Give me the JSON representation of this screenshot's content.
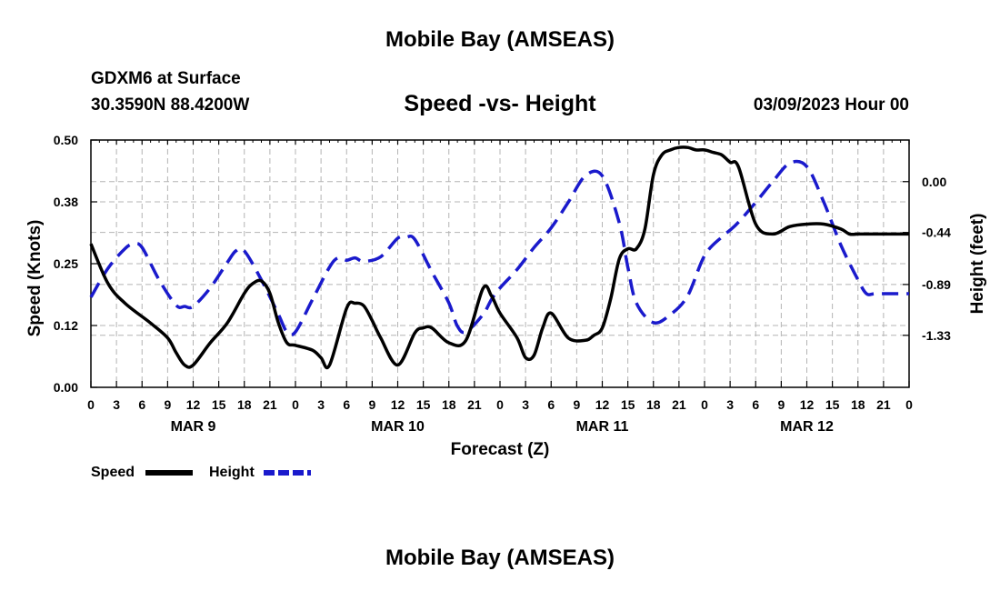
{
  "header": {
    "title": "Mobile Bay (AMSEAS)",
    "station": "GDXM6 at Surface",
    "coords": "30.3590N  88.4200W",
    "subtitle": "Speed -vs- Height",
    "datetime": "03/09/2023 Hour 00"
  },
  "footer": {
    "title": "Mobile Bay (AMSEAS)"
  },
  "chart_data": {
    "type": "line",
    "title": "Speed -vs- Height",
    "xlabel": "Forecast (Z)",
    "ylabel": "Speed (Knots)",
    "y2label": "Height (feet)",
    "x_tick_labels": [
      "0",
      "3",
      "6",
      "9",
      "12",
      "15",
      "18",
      "21",
      "0",
      "3",
      "6",
      "9",
      "12",
      "15",
      "18",
      "21",
      "0",
      "3",
      "6",
      "9",
      "12",
      "15",
      "18",
      "21",
      "0",
      "3",
      "6",
      "9",
      "12",
      "15",
      "18",
      "21",
      "0"
    ],
    "date_labels": [
      "MAR 9",
      "MAR 10",
      "MAR 11",
      "MAR 12"
    ],
    "x_unit": "forecast hour",
    "xlim": [
      0,
      96
    ],
    "ylim": [
      0,
      0.5
    ],
    "y_ticks": [
      "0.00",
      "0.12",
      "0.25",
      "0.38",
      "0.50"
    ],
    "y_tick_values": [
      0,
      0.125,
      0.25,
      0.375,
      0.5
    ],
    "y2lim": [
      -1.78,
      0.36
    ],
    "y2_ticks": [
      "0.00",
      "-0.44",
      "-0.89",
      "-1.33"
    ],
    "y2_tick_values": [
      0,
      -0.44,
      -0.89,
      -1.33
    ],
    "grid": true,
    "legend": [
      {
        "name": "Speed",
        "color": "#000000",
        "style": "solid"
      },
      {
        "name": "Height",
        "color": "#1a1acc",
        "style": "dashed"
      }
    ],
    "legend_position": "bottom-left",
    "series": [
      {
        "name": "Speed",
        "axis": "left",
        "color": "#000000",
        "style": "solid",
        "x": [
          0,
          2,
          4,
          7,
          9,
          10,
          11,
          12,
          14,
          16,
          18,
          19,
          20,
          21,
          22,
          23,
          24,
          26,
          27,
          28,
          30,
          31,
          32,
          33,
          34,
          36,
          38,
          39,
          40,
          42,
          44,
          46,
          47,
          48,
          50,
          51,
          52,
          53,
          54,
          56,
          58,
          59,
          60,
          61,
          62,
          63,
          64,
          65,
          66,
          67,
          68,
          69,
          70,
          71,
          72,
          73,
          74,
          75,
          76,
          78,
          80,
          82,
          84,
          86,
          88,
          89,
          90,
          91,
          92,
          93,
          94,
          95,
          96
        ],
        "y": [
          0.29,
          0.21,
          0.17,
          0.13,
          0.1,
          0.07,
          0.045,
          0.045,
          0.09,
          0.13,
          0.19,
          0.21,
          0.215,
          0.19,
          0.13,
          0.09,
          0.085,
          0.075,
          0.06,
          0.045,
          0.16,
          0.17,
          0.165,
          0.135,
          0.1,
          0.045,
          0.11,
          0.12,
          0.12,
          0.09,
          0.095,
          0.2,
          0.185,
          0.15,
          0.1,
          0.06,
          0.065,
          0.12,
          0.15,
          0.1,
          0.095,
          0.105,
          0.12,
          0.18,
          0.26,
          0.28,
          0.28,
          0.32,
          0.43,
          0.47,
          0.48,
          0.485,
          0.485,
          0.48,
          0.48,
          0.475,
          0.47,
          0.455,
          0.445,
          0.33,
          0.31,
          0.325,
          0.33,
          0.33,
          0.32,
          0.31,
          0.31,
          0.31,
          0.31,
          0.31,
          0.31,
          0.31,
          0.31
        ]
      },
      {
        "name": "Height",
        "axis": "right",
        "color": "#1a1acc",
        "style": "dashed",
        "x": [
          0,
          2,
          4,
          5,
          6,
          8,
          10,
          11,
          12,
          14,
          16,
          17,
          18,
          20,
          22,
          23,
          24,
          26,
          28,
          29,
          30,
          31,
          32,
          34,
          36,
          37,
          38,
          40,
          42,
          43,
          44,
          46,
          47,
          48,
          50,
          52,
          54,
          56,
          58,
          60,
          62,
          63,
          64,
          66,
          68,
          70,
          72,
          74,
          75,
          76,
          78,
          80,
          82,
          84,
          86,
          88,
          90,
          91,
          92,
          94,
          96
        ],
        "y": [
          -1.0,
          -0.75,
          -0.58,
          -0.54,
          -0.57,
          -0.85,
          -1.07,
          -1.08,
          -1.08,
          -0.92,
          -0.7,
          -0.6,
          -0.6,
          -0.85,
          -1.15,
          -1.3,
          -1.3,
          -1.02,
          -0.74,
          -0.66,
          -0.68,
          -0.66,
          -0.69,
          -0.65,
          -0.49,
          -0.48,
          -0.5,
          -0.78,
          -1.05,
          -1.25,
          -1.3,
          -1.15,
          -1.02,
          -0.92,
          -0.76,
          -0.57,
          -0.4,
          -0.18,
          0.05,
          0.05,
          -0.36,
          -0.74,
          -1.05,
          -1.22,
          -1.15,
          -0.99,
          -0.64,
          -0.48,
          -0.42,
          -0.35,
          -0.18,
          0.0,
          0.16,
          0.13,
          -0.18,
          -0.55,
          -0.85,
          -0.97,
          -0.97,
          -0.97,
          -0.97
        ]
      }
    ]
  }
}
